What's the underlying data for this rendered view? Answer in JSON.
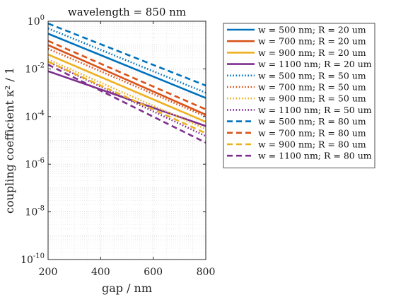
{
  "chart_data": {
    "type": "line",
    "title": "wavelength = 850 nm",
    "xlabel": "gap / nm",
    "ylabel": "coupling coefficient κ² / 1",
    "xlim": [
      200,
      800
    ],
    "ylim": [
      1e-10,
      1
    ],
    "yscale": "log",
    "grid": true,
    "minor_grid": true,
    "legend_position": "outside-right-top",
    "x_ticks": [
      200,
      400,
      600,
      800
    ],
    "y_ticks": [
      {
        "value": 1,
        "base": "10",
        "exp": "0"
      },
      {
        "value": 0.01,
        "base": "10",
        "exp": "-2"
      },
      {
        "value": 0.0001,
        "base": "10",
        "exp": "-4"
      },
      {
        "value": 1e-06,
        "base": "10",
        "exp": "-6"
      },
      {
        "value": 1e-08,
        "base": "10",
        "exp": "-8"
      },
      {
        "value": 1e-10,
        "base": "10",
        "exp": "-10"
      }
    ],
    "series": [
      {
        "name": "w = 500 nm; R = 20 um",
        "color": "#0072BD",
        "style": "solid",
        "x": [
          200,
          800
        ],
        "y": [
          0.3,
          0.0006
        ]
      },
      {
        "name": "w = 700 nm; R = 20 um",
        "color": "#D95319",
        "style": "solid",
        "x": [
          200,
          800
        ],
        "y": [
          0.1,
          0.00012
        ]
      },
      {
        "name": "w = 900 nm; R = 20 um",
        "color": "#EDB120",
        "style": "solid",
        "x": [
          200,
          800
        ],
        "y": [
          0.04,
          6e-05
        ]
      },
      {
        "name": "w = 1100 nm; R = 20 um",
        "color": "#7E2F8E",
        "style": "solid",
        "x": [
          200,
          800
        ],
        "y": [
          0.008,
          4e-05
        ]
      },
      {
        "name": "w = 500 nm; R = 50 um",
        "color": "#0072BD",
        "style": "dotted",
        "x": [
          200,
          800
        ],
        "y": [
          0.5,
          0.001
        ]
      },
      {
        "name": "w = 700 nm; R = 50 um",
        "color": "#D95319",
        "style": "dotted",
        "x": [
          200,
          800
        ],
        "y": [
          0.07,
          0.0001
        ]
      },
      {
        "name": "w = 900 nm; R = 50 um",
        "color": "#EDB120",
        "style": "dotted",
        "x": [
          200,
          800
        ],
        "y": [
          0.025,
          3e-05
        ]
      },
      {
        "name": "w = 1100 nm; R = 50 um",
        "color": "#7E2F8E",
        "style": "dotted",
        "x": [
          200,
          800
        ],
        "y": [
          0.02,
          1.5e-05
        ]
      },
      {
        "name": "w = 500 nm; R = 80 um",
        "color": "#0072BD",
        "style": "dashed",
        "x": [
          200,
          800
        ],
        "y": [
          0.8,
          0.002
        ]
      },
      {
        "name": "w = 700 nm; R = 80 um",
        "color": "#D95319",
        "style": "dashed",
        "x": [
          200,
          800
        ],
        "y": [
          0.15,
          0.0002
        ]
      },
      {
        "name": "w = 900 nm; R = 80 um",
        "color": "#EDB120",
        "style": "dashed",
        "x": [
          200,
          800
        ],
        "y": [
          0.02,
          2e-05
        ]
      },
      {
        "name": "w = 1100 nm; R = 80 um",
        "color": "#7E2F8E",
        "style": "dashed",
        "x": [
          200,
          800
        ],
        "y": [
          0.015,
          8e-06
        ]
      }
    ]
  }
}
